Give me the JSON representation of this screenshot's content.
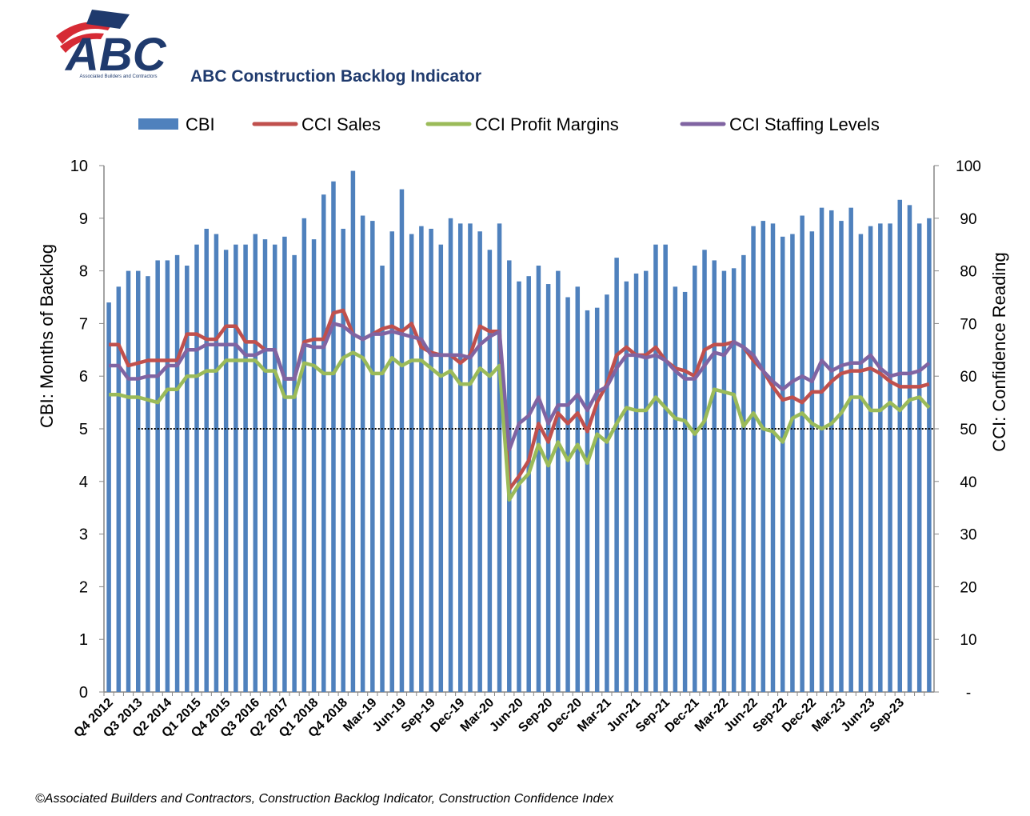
{
  "logo": {
    "text": "ABC",
    "subtext": "Associated Builders and Contractors"
  },
  "chart_data": {
    "type": "bar-line",
    "title": "ABC Construction Backlog Indicator",
    "y_label": "CBI: Months of Backlog",
    "y2_label": "CCI: Confidence Reading",
    "footnote": "©Associated Builders and Contractors, Construction Backlog Indicator, Construction Confidence Index",
    "categories": [
      "Q4 2012",
      null,
      null,
      "Q3 2013",
      null,
      null,
      "Q2 2014",
      null,
      null,
      "Q1 2015",
      null,
      null,
      "Q4 2015",
      null,
      null,
      "Q3 2016",
      null,
      null,
      "Q2 2017",
      null,
      null,
      "Q1 2018",
      null,
      null,
      "Q4 2018",
      null,
      null,
      "Mar-19",
      null,
      null,
      "Jun-19",
      null,
      null,
      "Sep-19",
      null,
      null,
      "Dec-19",
      null,
      null,
      "Mar-20",
      null,
      null,
      "Jun-20",
      null,
      null,
      "Sep-20",
      null,
      null,
      "Dec-20",
      null,
      null,
      "Mar-21",
      null,
      null,
      "Jun-21",
      null,
      null,
      "Sep-21",
      null,
      null,
      "Dec-21",
      null,
      null,
      "Mar-22",
      null,
      null,
      "Jun-22",
      null,
      null,
      "Sep-22",
      null,
      null,
      "Dec-22",
      null,
      null,
      "Mar-23",
      null,
      null,
      "Jun-23",
      null,
      null,
      "Sep-23",
      null,
      null,
      null
    ],
    "series": [
      {
        "name": "CBI",
        "type": "bar",
        "color": "#4f81bd",
        "values": [
          7.4,
          7.7,
          8.0,
          8.0,
          7.9,
          8.2,
          8.2,
          8.3,
          8.1,
          8.5,
          8.8,
          8.7,
          8.4,
          8.5,
          8.5,
          8.7,
          8.6,
          8.5,
          8.65,
          8.3,
          9.0,
          8.6,
          9.45,
          9.7,
          8.8,
          9.9,
          9.05,
          8.95,
          8.1,
          8.75,
          9.55,
          8.7,
          8.85,
          8.8,
          8.5,
          9.0,
          8.9,
          8.9,
          8.75,
          8.4,
          8.9,
          8.2,
          7.8,
          7.9,
          8.1,
          7.75,
          8.0,
          7.5,
          7.7,
          7.25,
          7.3,
          7.55,
          8.25,
          7.8,
          7.95,
          8.0,
          8.5,
          8.5,
          7.7,
          7.6,
          8.1,
          8.4,
          8.2,
          8.0,
          8.05,
          8.3,
          8.85,
          8.95,
          8.9,
          8.65,
          8.7,
          9.05,
          8.75,
          9.2,
          9.15,
          8.95,
          9.2,
          8.7,
          8.85,
          8.9,
          8.9,
          9.35,
          9.25,
          8.9,
          9.0
        ]
      },
      {
        "name": "CCI Sales",
        "type": "line",
        "axis": "y2",
        "color": "#c0504d",
        "values": [
          66,
          66,
          62,
          62.5,
          63,
          63,
          63,
          63,
          68,
          68,
          67,
          67,
          69.5,
          69.5,
          66.5,
          66.5,
          65,
          65,
          59.5,
          59.5,
          66.5,
          67,
          67,
          72,
          72.5,
          68,
          67,
          68,
          69,
          69.5,
          68.5,
          70,
          65.5,
          64.5,
          64,
          64,
          62.5,
          64,
          69.5,
          68.5,
          68.5,
          38.5,
          41,
          44,
          51,
          47.5,
          53,
          51,
          53,
          49.5,
          55,
          58.5,
          64,
          65.5,
          64,
          64,
          65.5,
          63,
          61.5,
          61,
          60,
          65,
          66,
          66,
          66.5,
          65.5,
          63,
          61,
          58,
          55.5,
          56,
          55,
          57,
          57,
          59,
          60.5,
          61,
          61,
          61.5,
          60.5,
          59,
          58,
          58,
          58,
          58.5
        ]
      },
      {
        "name": "CCI Profit Margins",
        "type": "line",
        "axis": "y2",
        "color": "#9bbb59",
        "values": [
          56.5,
          56.5,
          56,
          56,
          55.5,
          55,
          57.5,
          57.5,
          60,
          60,
          61,
          61,
          63,
          63,
          63,
          63,
          61,
          61,
          56,
          56,
          62.5,
          62,
          60.5,
          60.5,
          63.5,
          64.5,
          63.5,
          60.5,
          60.5,
          63.5,
          62,
          63,
          63,
          61.5,
          60,
          61,
          58.5,
          58.5,
          61.5,
          60,
          62,
          36.5,
          39.5,
          41.5,
          47,
          43,
          47.5,
          44,
          47,
          43.5,
          49,
          47.5,
          51,
          54,
          53.5,
          53.5,
          56,
          54,
          52,
          51.5,
          49,
          51.5,
          57.5,
          57,
          56.5,
          50.5,
          53,
          50,
          49.5,
          47.5,
          52,
          53,
          51,
          50,
          51,
          53,
          56,
          56,
          53.5,
          53.5,
          55,
          53.5,
          55.5,
          56,
          54
        ]
      },
      {
        "name": "CCI Staffing Levels",
        "type": "line",
        "axis": "y2",
        "color": "#8064a2",
        "values": [
          62,
          62,
          59.5,
          59.5,
          60,
          60,
          62,
          62,
          65,
          65,
          66,
          66,
          66,
          66,
          64,
          64,
          65,
          65,
          59.5,
          59.5,
          66,
          65.5,
          65.5,
          70,
          69.5,
          68,
          67,
          68,
          68,
          68.5,
          68,
          67.5,
          67,
          64,
          64,
          64,
          64,
          63.5,
          66,
          67.5,
          68.5,
          46,
          51,
          52.5,
          56,
          51,
          54.5,
          54.5,
          56.5,
          53.5,
          57,
          58,
          61.5,
          64,
          64,
          63.5,
          64,
          63,
          61,
          59.5,
          59.5,
          62,
          64.5,
          64,
          66.5,
          65.5,
          64,
          61,
          59,
          57.5,
          59,
          60,
          59,
          63,
          61,
          62,
          62.5,
          62.5,
          64,
          61.5,
          60,
          60.5,
          60.5,
          61,
          62.5
        ]
      }
    ],
    "ylim": [
      0,
      10
    ],
    "yticks": [
      0,
      1,
      2,
      3,
      4,
      5,
      6,
      7,
      8,
      9,
      10
    ],
    "y2lim": [
      0,
      100
    ],
    "y2ticks": [
      {
        "value": 0,
        "label": "-"
      },
      10,
      20,
      30,
      40,
      50,
      60,
      70,
      80,
      90,
      100
    ],
    "reference_y2": 50,
    "legend": "top"
  }
}
